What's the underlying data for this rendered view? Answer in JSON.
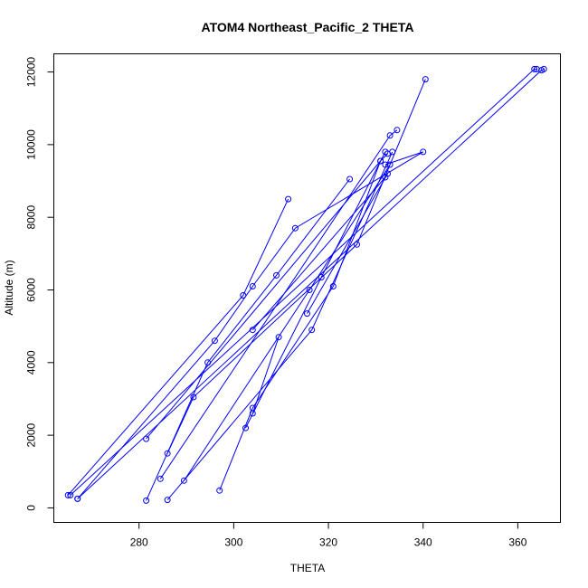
{
  "chart_data": {
    "type": "line",
    "title": "ATOM4 Northeast_Pacific_2 THETA",
    "xlabel": "THETA",
    "ylabel": "Altitude (m)",
    "xlim": [
      262,
      369
    ],
    "ylim": [
      -400,
      12500
    ],
    "x_ticks": [
      280,
      300,
      320,
      340,
      360
    ],
    "y_ticks": [
      0,
      2000,
      4000,
      6000,
      8000,
      10000,
      12000
    ],
    "grid": false,
    "colors": {
      "series": "#0000ff",
      "axis": "#000000"
    },
    "series": [
      {
        "values": [
          [
            265,
            350
          ],
          [
            302,
            5850
          ],
          [
            311.5,
            8500
          ]
        ]
      },
      {
        "values": [
          [
            267,
            250
          ],
          [
            296,
            4600
          ],
          [
            304,
            6100
          ],
          [
            313,
            7700
          ],
          [
            340,
            9800
          ],
          [
            332,
            9450
          ]
        ]
      },
      {
        "values": [
          [
            281.5,
            1900
          ],
          [
            331,
            9550
          ],
          [
            332.5,
            9750
          ]
        ]
      },
      {
        "values": [
          [
            281.5,
            200
          ],
          [
            294.5,
            4000
          ],
          [
            309,
            6400
          ],
          [
            324.5,
            9050
          ]
        ]
      },
      {
        "values": [
          [
            284.5,
            800
          ],
          [
            333,
            10250
          ],
          [
            334.5,
            10400
          ]
        ]
      },
      {
        "values": [
          [
            286,
            1500
          ],
          [
            291.5,
            3050
          ],
          [
            326,
            7250
          ],
          [
            340.5,
            11800
          ]
        ]
      },
      {
        "values": [
          [
            286,
            220
          ],
          [
            316.5,
            4900
          ],
          [
            333.5,
            9800
          ]
        ]
      },
      {
        "values": [
          [
            289.5,
            750
          ],
          [
            316,
            6000
          ],
          [
            333,
            9450
          ]
        ]
      },
      {
        "values": [
          [
            297,
            480
          ],
          [
            304,
            2750
          ],
          [
            321,
            6100
          ],
          [
            331,
            9550
          ]
        ]
      },
      {
        "values": [
          [
            302.5,
            2200
          ],
          [
            318.5,
            6350
          ],
          [
            332,
            9800
          ]
        ]
      },
      {
        "values": [
          [
            304,
            2600
          ],
          [
            309.5,
            4700
          ]
        ]
      },
      {
        "values": [
          [
            304,
            4900
          ],
          [
            332,
            9100
          ]
        ]
      },
      {
        "values": [
          [
            315.5,
            5350
          ],
          [
            332.5,
            9200
          ]
        ]
      },
      {
        "values": [
          [
            265.5,
            350
          ],
          [
            363.5,
            12080
          ],
          [
            364,
            12080
          ]
        ]
      },
      {
        "values": [
          [
            267,
            250
          ],
          [
            365,
            12050
          ],
          [
            365.5,
            12080
          ]
        ]
      }
    ]
  }
}
